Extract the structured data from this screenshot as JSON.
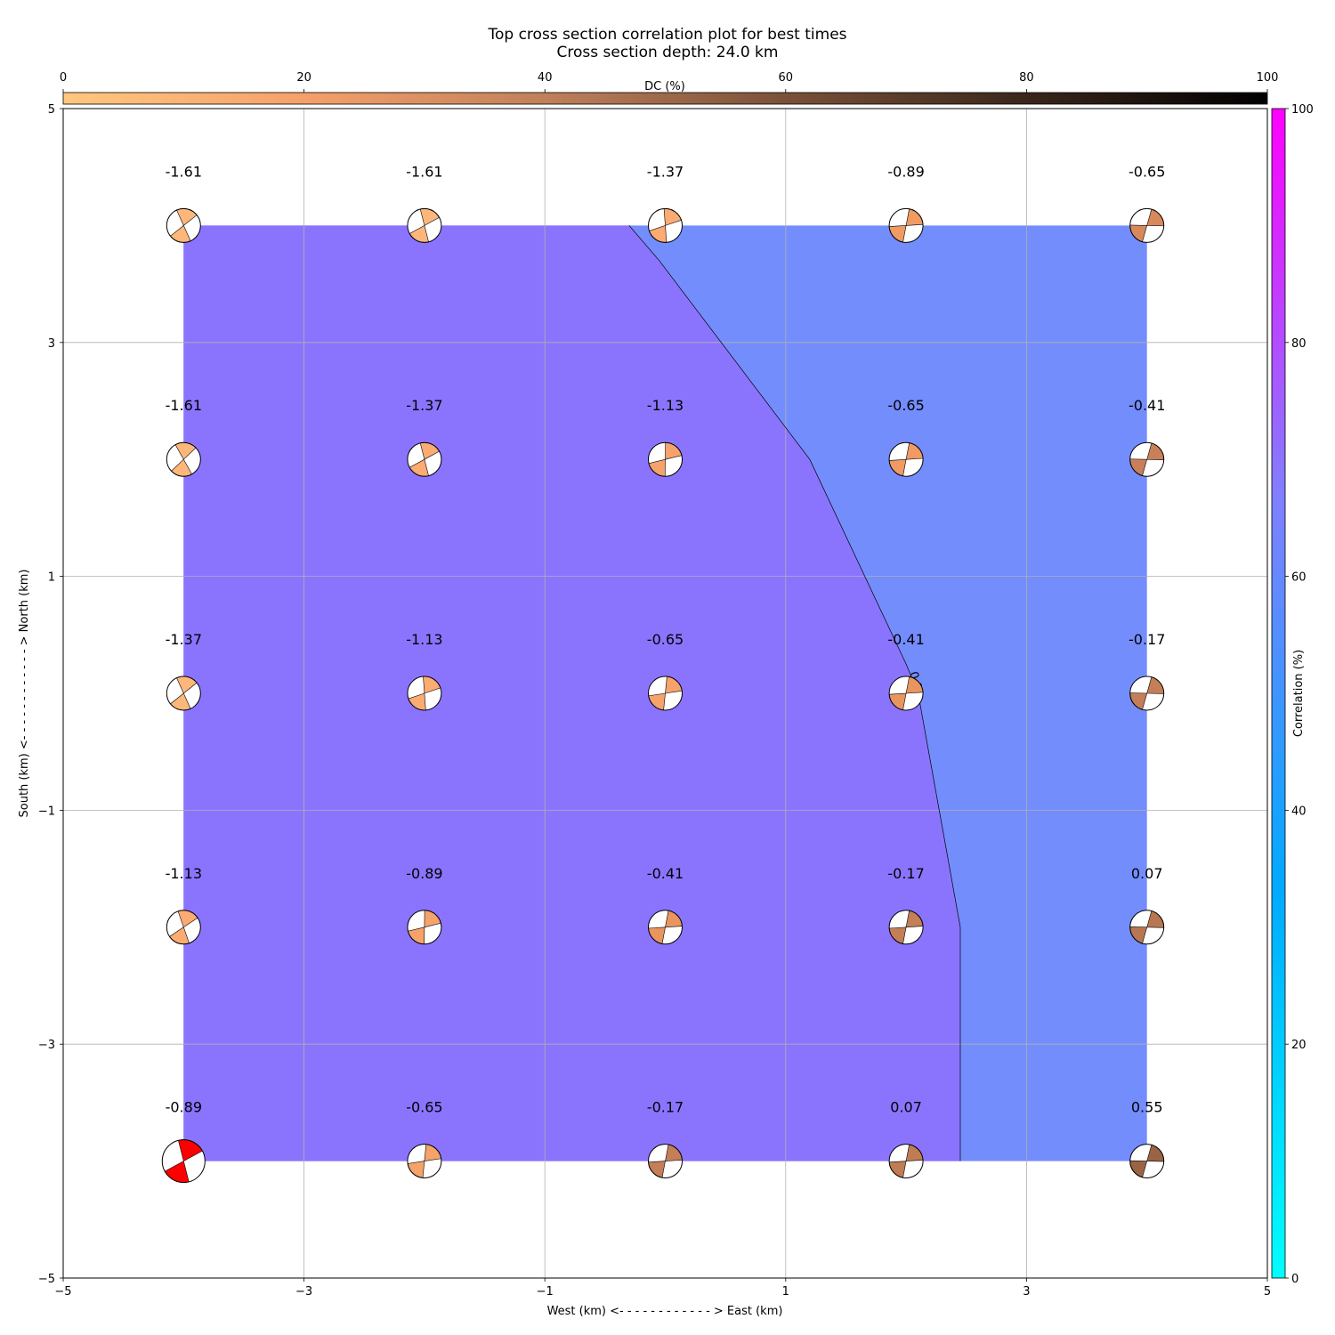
{
  "chart_data": {
    "type": "heatmap",
    "title": "Top cross section correlation plot for best times",
    "subtitle": "Cross section depth: 24.0 km",
    "xlabel": "West (km) <- - - - - - - - - - - - > East (km)",
    "ylabel": "South (km) <- - - - - - - - - - - - > North (km)",
    "xlim": [
      -5,
      5
    ],
    "ylim": [
      -5,
      5
    ],
    "xticks": [
      -5,
      -3,
      -1,
      1,
      3,
      5
    ],
    "yticks": [
      -5,
      -3,
      -1,
      1,
      3,
      5
    ],
    "xtick_labels": [
      "−5",
      "−3",
      "−1",
      "1",
      "3",
      "5"
    ],
    "ytick_labels": [
      "−5",
      "−3",
      "−1",
      "1",
      "3",
      "5"
    ],
    "grid": true,
    "top_colorbar": {
      "label": "DC (%)",
      "range": [
        0,
        100
      ],
      "ticks": [
        0,
        20,
        40,
        60,
        80,
        100
      ],
      "tick_labels": [
        "0",
        "20",
        "40",
        "60",
        "80",
        "100"
      ],
      "colors": [
        "#ffc77f",
        "#f5a06a",
        "#c0805a",
        "#7a5138",
        "#3a261b",
        "#000000"
      ]
    },
    "right_colorbar": {
      "label": "Correlation (%)",
      "range": [
        0,
        100
      ],
      "ticks": [
        0,
        20,
        40,
        60,
        80,
        100
      ],
      "tick_labels": [
        "0",
        "20",
        "40",
        "60",
        "80",
        "100"
      ],
      "colors": [
        "#00ffff",
        "#00aaff",
        "#8080ff",
        "#ff00ff"
      ]
    },
    "contour": {
      "fill_colors": [
        "#8b74fd",
        "#748dfd"
      ],
      "boundary": [
        [
          -0.3,
          4
        ],
        [
          -0.05,
          3.7
        ],
        [
          1.2,
          2
        ],
        [
          2.0,
          0.25
        ],
        [
          2.1,
          0
        ],
        [
          2.45,
          -2
        ],
        [
          2.45,
          -3.5
        ],
        [
          2.45,
          -4
        ]
      ],
      "label": "0.0"
    },
    "x": [
      -4,
      -2,
      0,
      2,
      4
    ],
    "y": [
      4,
      2,
      0,
      -2,
      -4
    ],
    "values": [
      [
        "-1.61",
        "-1.61",
        "-1.37",
        "-0.89",
        "-0.65"
      ],
      [
        "-1.61",
        "-1.37",
        "-1.13",
        "-0.65",
        "-0.41"
      ],
      [
        "-1.37",
        "-1.13",
        "-0.65",
        "-0.41",
        "-0.17"
      ],
      [
        "-1.13",
        "-0.89",
        "-0.41",
        "-0.17",
        "0.07"
      ],
      [
        "-0.89",
        "-0.65",
        "-0.17",
        "0.07",
        "0.55"
      ]
    ],
    "beachballs": [
      [
        {
          "strike": 120,
          "color": "#fdb77a"
        },
        {
          "strike": 110,
          "color": "#fdb77a"
        },
        {
          "strike": 100,
          "color": "#fcab72"
        },
        {
          "strike": 85,
          "color": "#f09a64"
        },
        {
          "strike": 80,
          "color": "#d7895c"
        }
      ],
      [
        {
          "strike": 125,
          "color": "#fdb77a"
        },
        {
          "strike": 110,
          "color": "#fcab72"
        },
        {
          "strike": 95,
          "color": "#f5a36b"
        },
        {
          "strike": 85,
          "color": "#f09a64"
        },
        {
          "strike": 80,
          "color": "#c9805a"
        }
      ],
      [
        {
          "strike": 120,
          "color": "#fdb77a"
        },
        {
          "strike": 100,
          "color": "#fcab72"
        },
        {
          "strike": 90,
          "color": "#f5a36b"
        },
        {
          "strike": 85,
          "color": "#e8955f"
        },
        {
          "strike": 80,
          "color": "#c47e58"
        }
      ],
      [
        {
          "strike": 115,
          "color": "#fcab72"
        },
        {
          "strike": 95,
          "color": "#f5a36b"
        },
        {
          "strike": 85,
          "color": "#e8955f"
        },
        {
          "strike": 85,
          "color": "#c47e58"
        },
        {
          "strike": 80,
          "color": "#b87752"
        }
      ],
      [
        {
          "strike": 110,
          "color": "#ff0000",
          "large": true
        },
        {
          "strike": 90,
          "color": "#f5a36b"
        },
        {
          "strike": 85,
          "color": "#c47e58"
        },
        {
          "strike": 85,
          "color": "#bf7c55"
        },
        {
          "strike": 80,
          "color": "#9a6444"
        }
      ]
    ]
  }
}
